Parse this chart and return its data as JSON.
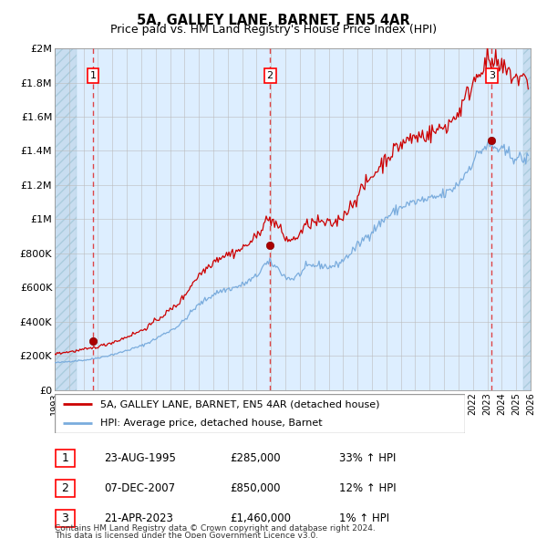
{
  "title": "5A, GALLEY LANE, BARNET, EN5 4AR",
  "subtitle": "Price paid vs. HM Land Registry's House Price Index (HPI)",
  "xlim": [
    1993.0,
    2026.0
  ],
  "ylim": [
    0,
    2000000
  ],
  "yticks": [
    0,
    200000,
    400000,
    600000,
    800000,
    1000000,
    1200000,
    1400000,
    1600000,
    1800000,
    2000000
  ],
  "ytick_labels": [
    "£0",
    "£200K",
    "£400K",
    "£600K",
    "£800K",
    "£1M",
    "£1.2M",
    "£1.4M",
    "£1.6M",
    "£1.8M",
    "£2M"
  ],
  "bg_color": "#ddeeff",
  "hatch_left_end": 1994.5,
  "hatch_right_start": 2025.5,
  "grid_color": "#bbbbbb",
  "sale_dates": [
    1995.65,
    2007.93,
    2023.31
  ],
  "sale_prices": [
    285000,
    850000,
    1460000
  ],
  "sale_labels": [
    "1",
    "2",
    "3"
  ],
  "line_color_property": "#cc0000",
  "line_color_hpi": "#7aacdd",
  "marker_color": "#aa0000",
  "dashed_line_color": "#dd3333",
  "legend_entries": [
    {
      "label": "5A, GALLEY LANE, BARNET, EN5 4AR (detached house)",
      "color": "#cc0000"
    },
    {
      "label": "HPI: Average price, detached house, Barnet",
      "color": "#7aacdd"
    }
  ],
  "transaction_table": [
    {
      "num": "1",
      "date": "23-AUG-1995",
      "price": "£285,000",
      "hpi": "33% ↑ HPI"
    },
    {
      "num": "2",
      "date": "07-DEC-2007",
      "price": "£850,000",
      "hpi": "12% ↑ HPI"
    },
    {
      "num": "3",
      "date": "21-APR-2023",
      "price": "£1,460,000",
      "hpi": "1% ↑ HPI"
    }
  ],
  "footnote1": "Contains HM Land Registry data © Crown copyright and database right 2024.",
  "footnote2": "This data is licensed under the Open Government Licence v3.0."
}
